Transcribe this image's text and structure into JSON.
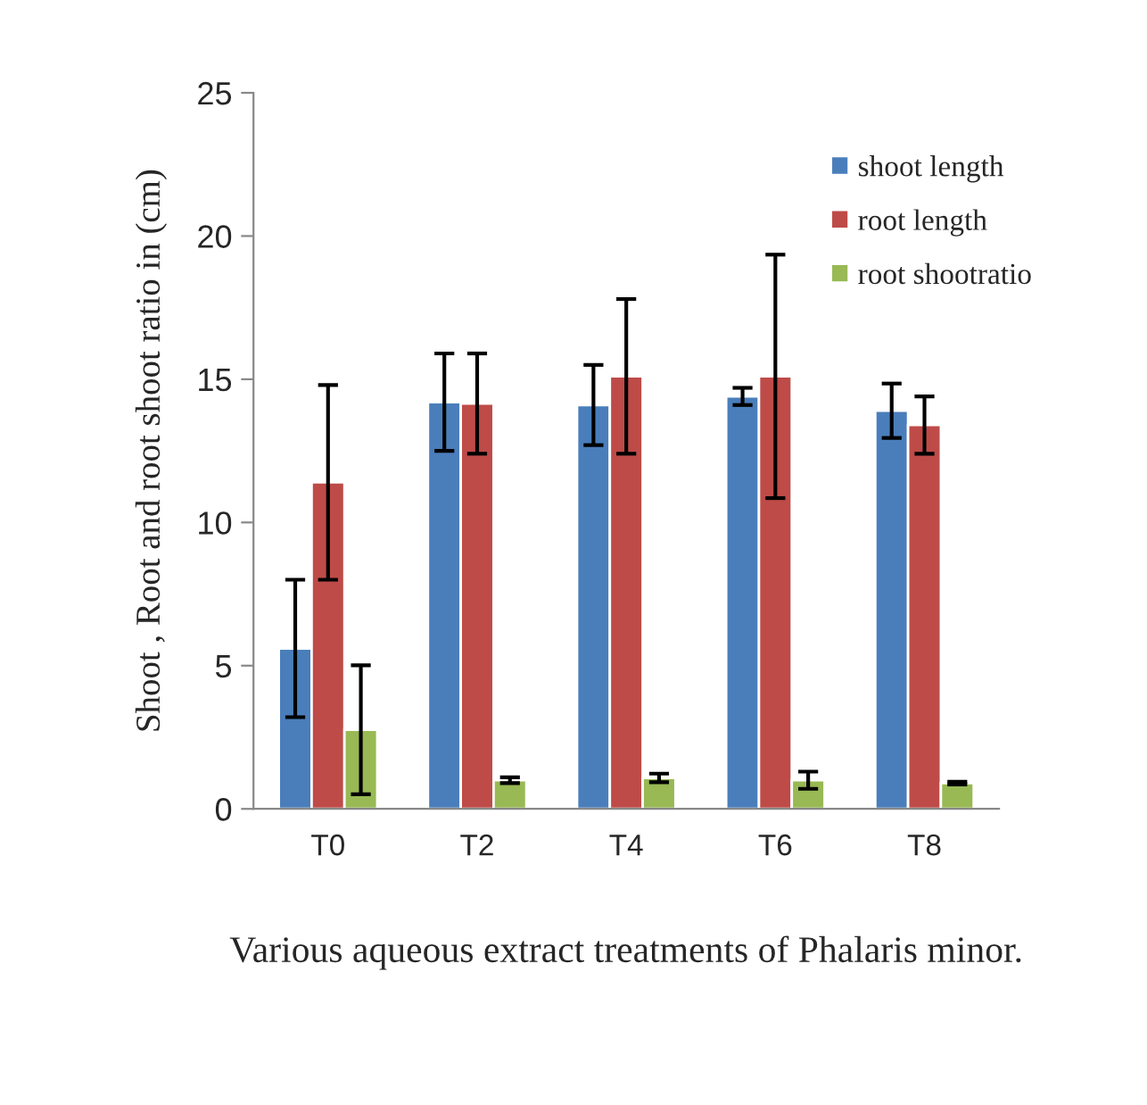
{
  "chart_data": {
    "type": "bar",
    "xlabel": "Various aqueous extract treatments of Phalaris minor.",
    "ylabel": "Shoot , Root and root shoot ratio in (cm)",
    "categories": [
      "T0",
      "T2",
      "T4",
      "T6",
      "T8"
    ],
    "series": [
      {
        "name": "shoot length",
        "color": "#4a7ebb",
        "values": [
          5.6,
          14.2,
          14.1,
          14.4,
          13.9
        ],
        "errors": [
          2.4,
          1.7,
          1.4,
          0.3,
          0.95
        ]
      },
      {
        "name": "root length",
        "color": "#be4b48",
        "values": [
          11.4,
          14.15,
          15.1,
          15.1,
          13.4
        ],
        "errors": [
          3.4,
          1.75,
          2.7,
          4.25,
          1.0
        ]
      },
      {
        "name": "root shootratio",
        "color": "#98b954",
        "values": [
          2.76,
          1.0,
          1.08,
          1.0,
          0.9
        ],
        "errors": [
          2.25,
          0.1,
          0.15,
          0.3,
          0.05
        ]
      }
    ],
    "ylim": [
      0,
      25
    ],
    "yticks": [
      0,
      5,
      10,
      15,
      20,
      25
    ],
    "grid": false,
    "legend": "top right"
  }
}
